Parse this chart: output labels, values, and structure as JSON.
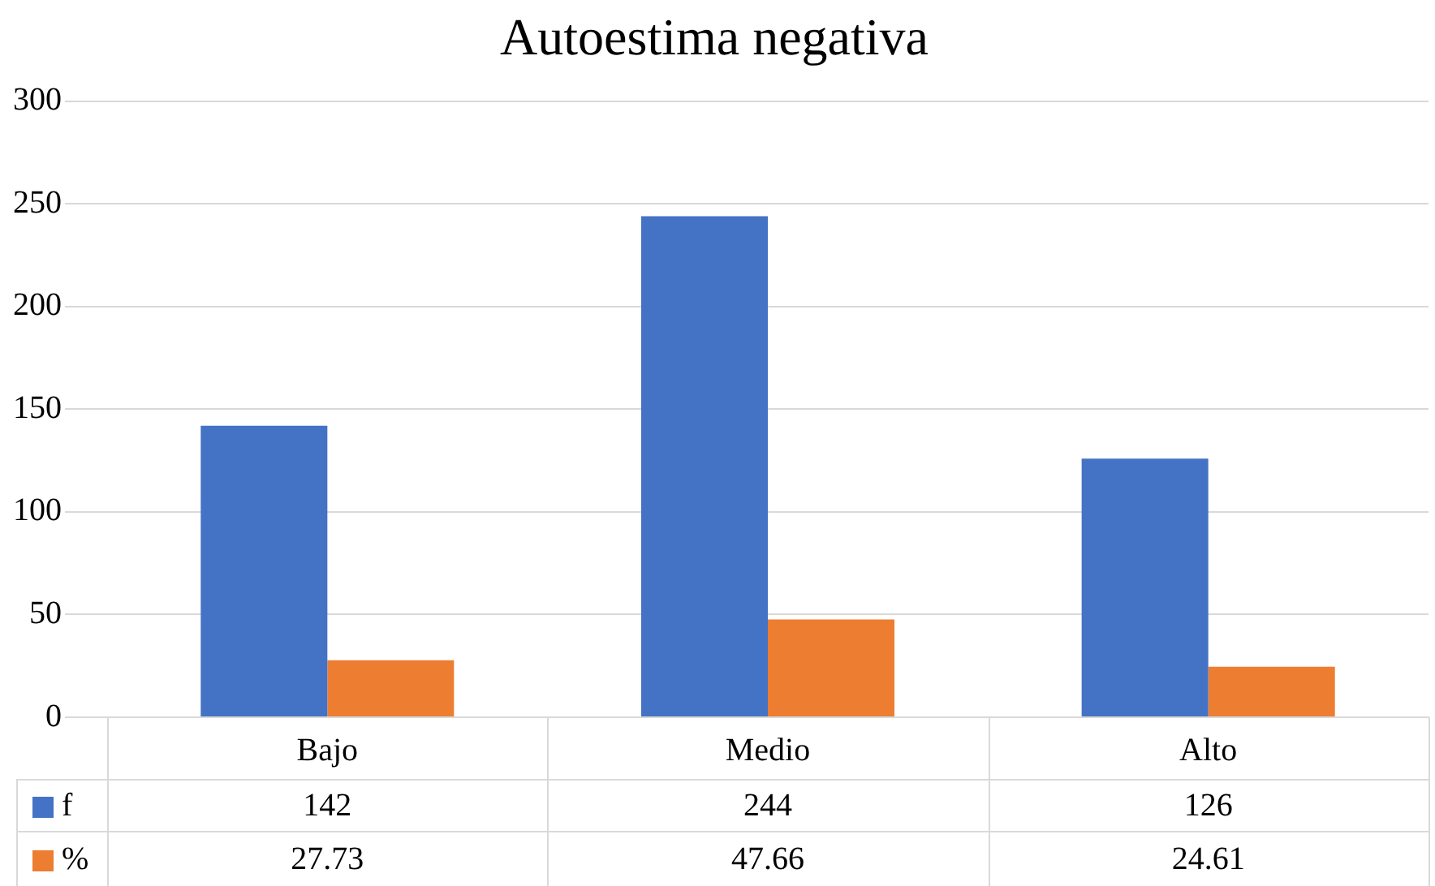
{
  "chart_data": {
    "type": "bar",
    "title": "Autoestima negativa",
    "categories": [
      "Bajo",
      "Medio",
      "Alto"
    ],
    "series": [
      {
        "name": "f",
        "color": "#4472c4",
        "values": [
          142,
          244,
          126
        ]
      },
      {
        "name": "%",
        "color": "#ed7d31",
        "values": [
          27.73,
          47.66,
          24.61
        ]
      }
    ],
    "ylim": [
      0,
      300
    ],
    "yticks": [
      0,
      50,
      100,
      150,
      200,
      250,
      300
    ],
    "grid": "y",
    "legend": "bottom",
    "data_labels": true
  }
}
